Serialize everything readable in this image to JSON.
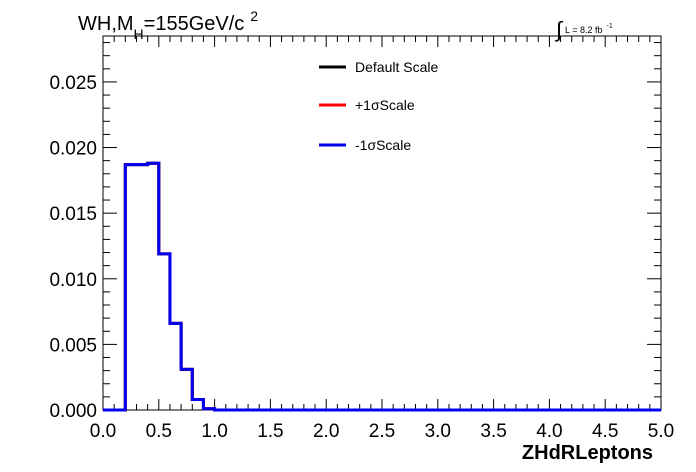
{
  "chart_data": {
    "type": "line",
    "title_parts": {
      "base": "WH,M",
      "sub": "H",
      "mid": "=155GeV/c",
      "sup": "2"
    },
    "lumi_parts": {
      "integral": "∫",
      "text": "L = 8.2 fb",
      "sup": "-1"
    },
    "xlabel": "ZHdRLeptons",
    "ylabel": "",
    "xlim": [
      0.0,
      5.0
    ],
    "ylim": [
      0.0,
      0.0285
    ],
    "x_ticks": [
      "0.0",
      "0.5",
      "1.0",
      "1.5",
      "2.0",
      "2.5",
      "3.0",
      "3.5",
      "4.0",
      "4.5",
      "5.0"
    ],
    "y_ticks": [
      "0.000",
      "0.005",
      "0.010",
      "0.015",
      "0.020",
      "0.025"
    ],
    "bin_width": 0.1,
    "bin_edges_start": 0.0,
    "grid": false,
    "legend_position": "top-center",
    "series": [
      {
        "name": "Default Scale",
        "color": "#000000",
        "values": [
          0,
          0,
          0.0187,
          0.0187,
          0.0188,
          0.0119,
          0.0066,
          0.0031,
          0.0008,
          0.0001,
          0,
          0,
          0,
          0,
          0,
          0,
          0,
          0,
          0,
          0,
          0,
          0,
          0,
          0,
          0,
          0,
          0,
          0,
          0,
          0,
          0,
          0,
          0,
          0,
          0,
          0,
          0,
          0,
          0,
          0,
          0,
          0,
          0,
          0,
          0,
          0,
          0,
          0,
          0,
          0
        ]
      },
      {
        "name": "+1σScale",
        "color": "#ff0000",
        "values": [
          0,
          0,
          0.0187,
          0.0187,
          0.0188,
          0.0119,
          0.0066,
          0.0031,
          0.0008,
          0.0001,
          0,
          0,
          0,
          0,
          0,
          0,
          0,
          0,
          0,
          0,
          0,
          0,
          0,
          0,
          0,
          0,
          0,
          0,
          0,
          0,
          0,
          0,
          0,
          0,
          0,
          0,
          0,
          0,
          0,
          0,
          0,
          0,
          0,
          0,
          0,
          0,
          0,
          0,
          0,
          0
        ]
      },
      {
        "name": "-1σScale",
        "color": "#0000ee",
        "values": [
          0,
          0,
          0.0187,
          0.0187,
          0.0188,
          0.0119,
          0.0066,
          0.0031,
          0.0008,
          0.0001,
          0,
          0,
          0,
          0,
          0,
          0,
          0,
          0,
          0,
          0,
          0,
          0,
          0,
          0,
          0,
          0,
          0,
          0,
          0,
          0,
          0,
          0,
          0,
          0,
          0,
          0,
          0,
          0,
          0,
          0,
          0,
          0,
          0,
          0,
          0,
          0,
          0,
          0,
          0,
          0
        ]
      }
    ]
  }
}
